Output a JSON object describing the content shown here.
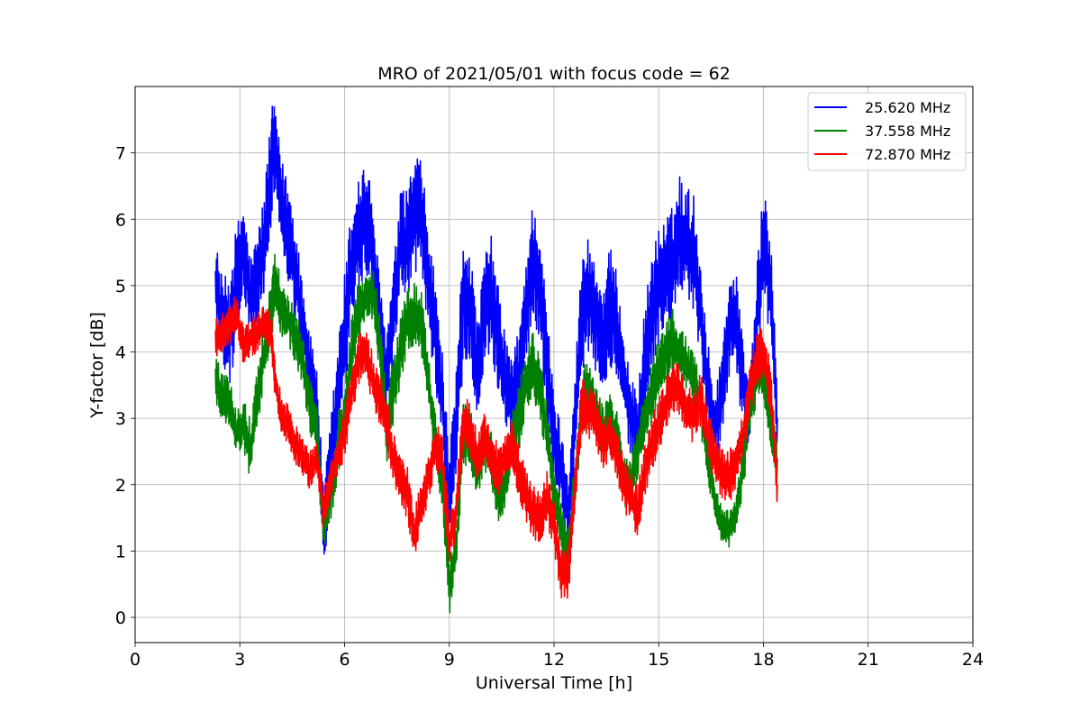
{
  "chart_data": {
    "type": "line",
    "title": "MRO of 2021/05/01 with focus code = 62",
    "xlabel": "Universal Time [h]",
    "ylabel": "Y-factor [dB]",
    "xlim": [
      0,
      24
    ],
    "ylim": [
      -0.38,
      8.0
    ],
    "xticks": [
      0,
      3,
      6,
      9,
      12,
      15,
      18,
      21,
      24
    ],
    "yticks": [
      0,
      1,
      2,
      3,
      4,
      5,
      6,
      7
    ],
    "grid": true,
    "legend_position": "top-right",
    "series": [
      {
        "name": "25.620 MHz",
        "color": "#0000ff",
        "x": [
          2.3,
          2.5,
          2.7,
          2.9,
          3.1,
          3.3,
          3.5,
          3.7,
          3.9,
          4.0,
          4.2,
          4.4,
          4.6,
          4.8,
          5.0,
          5.2,
          5.4,
          5.6,
          5.8,
          6.0,
          6.2,
          6.4,
          6.6,
          6.8,
          7.0,
          7.2,
          7.4,
          7.6,
          7.8,
          8.0,
          8.2,
          8.4,
          8.6,
          8.8,
          9.0,
          9.2,
          9.4,
          9.6,
          9.8,
          10.0,
          10.2,
          10.4,
          10.6,
          10.8,
          11.0,
          11.2,
          11.4,
          11.6,
          11.8,
          12.0,
          12.2,
          12.4,
          12.6,
          12.8,
          13.0,
          13.2,
          13.4,
          13.6,
          13.8,
          14.0,
          14.2,
          14.4,
          14.6,
          14.8,
          15.0,
          15.2,
          15.4,
          15.6,
          15.8,
          16.0,
          16.2,
          16.4,
          16.6,
          16.8,
          17.0,
          17.2,
          17.4,
          17.6,
          17.8,
          18.0,
          18.2,
          18.4
        ],
        "y": [
          5.0,
          4.5,
          4.3,
          5.0,
          5.6,
          4.8,
          5.1,
          5.6,
          6.8,
          7.1,
          6.2,
          5.7,
          5.2,
          4.4,
          3.8,
          3.3,
          1.3,
          2.2,
          3.2,
          4.2,
          5.3,
          5.8,
          6.0,
          5.6,
          4.4,
          3.6,
          4.5,
          5.6,
          5.6,
          6.1,
          6.0,
          5.1,
          4.3,
          3.3,
          1.7,
          2.8,
          4.9,
          4.7,
          3.7,
          4.6,
          4.9,
          4.2,
          3.6,
          3.2,
          3.6,
          4.6,
          5.4,
          5.0,
          3.8,
          2.7,
          2.3,
          1.6,
          2.9,
          4.6,
          4.9,
          4.5,
          4.2,
          4.7,
          4.4,
          3.6,
          3.0,
          2.8,
          3.9,
          4.6,
          5.0,
          5.1,
          5.3,
          5.8,
          5.6,
          5.5,
          4.6,
          3.5,
          2.8,
          3.3,
          4.4,
          4.5,
          3.6,
          3.0,
          4.4,
          5.6,
          5.0,
          3.0
        ],
        "amp": [
          0.7,
          0.6,
          0.9,
          0.9,
          0.7,
          0.6,
          0.7,
          0.8,
          0.9,
          0.6,
          0.7,
          0.9,
          0.8,
          0.7,
          0.5,
          0.5,
          0.6,
          0.8,
          0.9,
          1.0,
          0.9,
          0.9,
          0.9,
          0.8,
          0.7,
          0.7,
          0.8,
          0.8,
          0.9,
          0.9,
          0.9,
          0.8,
          0.8,
          0.7,
          0.7,
          0.9,
          1.0,
          0.9,
          0.8,
          0.8,
          0.9,
          0.8,
          0.7,
          0.7,
          0.8,
          0.9,
          0.9,
          0.9,
          0.8,
          0.7,
          0.6,
          0.6,
          0.8,
          0.9,
          0.9,
          0.8,
          0.8,
          0.9,
          0.8,
          0.7,
          0.6,
          0.6,
          0.8,
          0.9,
          0.9,
          0.9,
          0.9,
          0.9,
          0.9,
          0.9,
          0.8,
          0.7,
          0.6,
          0.7,
          0.8,
          0.8,
          0.7,
          0.6,
          0.8,
          0.9,
          0.8,
          0.6
        ]
      },
      {
        "name": "37.558 MHz",
        "color": "#008000",
        "x": [
          2.3,
          2.5,
          2.7,
          2.9,
          3.1,
          3.3,
          3.5,
          3.7,
          3.9,
          4.0,
          4.2,
          4.4,
          4.6,
          4.8,
          5.0,
          5.2,
          5.4,
          5.6,
          5.8,
          6.0,
          6.2,
          6.4,
          6.6,
          6.8,
          7.0,
          7.2,
          7.4,
          7.6,
          7.8,
          8.0,
          8.2,
          8.4,
          8.6,
          8.8,
          9.0,
          9.2,
          9.4,
          9.6,
          9.8,
          10.0,
          10.2,
          10.4,
          10.6,
          10.8,
          11.0,
          11.2,
          11.4,
          11.6,
          11.8,
          12.0,
          12.2,
          12.4,
          12.6,
          12.8,
          13.0,
          13.2,
          13.4,
          13.6,
          13.8,
          14.0,
          14.2,
          14.4,
          14.6,
          14.8,
          15.0,
          15.2,
          15.4,
          15.6,
          15.8,
          16.0,
          16.2,
          16.4,
          16.6,
          16.8,
          17.0,
          17.2,
          17.4,
          17.6,
          17.8,
          18.0,
          18.2,
          18.4
        ],
        "y": [
          3.6,
          3.3,
          3.2,
          2.8,
          2.9,
          2.5,
          3.3,
          4.0,
          4.6,
          5.1,
          4.6,
          4.5,
          4.2,
          3.9,
          3.2,
          2.8,
          1.4,
          1.8,
          2.6,
          3.0,
          4.0,
          4.6,
          4.8,
          4.9,
          4.2,
          2.8,
          3.4,
          4.0,
          4.5,
          4.6,
          4.4,
          3.6,
          2.7,
          2.0,
          0.4,
          1.1,
          2.8,
          2.7,
          2.1,
          2.6,
          2.4,
          1.8,
          2.0,
          2.8,
          3.0,
          3.6,
          3.8,
          3.4,
          2.8,
          1.9,
          1.4,
          1.0,
          2.0,
          3.2,
          3.5,
          3.1,
          2.8,
          3.0,
          2.7,
          2.0,
          2.1,
          2.5,
          3.0,
          3.4,
          3.8,
          4.0,
          4.2,
          4.0,
          3.8,
          3.6,
          3.2,
          2.4,
          1.8,
          1.4,
          1.3,
          1.5,
          2.2,
          3.1,
          3.6,
          3.7,
          3.0,
          2.4
        ],
        "amp": [
          0.4,
          0.4,
          0.4,
          0.4,
          0.4,
          0.5,
          0.5,
          0.5,
          0.5,
          0.5,
          0.4,
          0.4,
          0.4,
          0.4,
          0.4,
          0.5,
          0.4,
          0.4,
          0.5,
          0.5,
          0.5,
          0.5,
          0.4,
          0.4,
          0.5,
          0.5,
          0.5,
          0.5,
          0.5,
          0.5,
          0.5,
          0.4,
          0.4,
          0.4,
          0.4,
          0.4,
          0.5,
          0.5,
          0.4,
          0.4,
          0.4,
          0.4,
          0.4,
          0.4,
          0.5,
          0.5,
          0.5,
          0.5,
          0.4,
          0.4,
          0.4,
          0.4,
          0.4,
          0.5,
          0.5,
          0.4,
          0.4,
          0.4,
          0.4,
          0.4,
          0.4,
          0.4,
          0.4,
          0.5,
          0.5,
          0.5,
          0.5,
          0.4,
          0.4,
          0.4,
          0.4,
          0.4,
          0.3,
          0.3,
          0.3,
          0.3,
          0.4,
          0.4,
          0.4,
          0.4,
          0.4,
          0.4
        ]
      },
      {
        "name": "72.870 MHz",
        "color": "#ff0000",
        "x": [
          2.3,
          2.5,
          2.7,
          2.9,
          3.1,
          3.3,
          3.5,
          3.7,
          3.9,
          4.0,
          4.2,
          4.4,
          4.6,
          4.8,
          5.0,
          5.2,
          5.4,
          5.6,
          5.8,
          6.0,
          6.2,
          6.4,
          6.6,
          6.8,
          7.0,
          7.2,
          7.4,
          7.6,
          7.8,
          8.0,
          8.2,
          8.4,
          8.6,
          8.8,
          9.0,
          9.2,
          9.4,
          9.6,
          9.8,
          10.0,
          10.2,
          10.4,
          10.6,
          10.8,
          11.0,
          11.2,
          11.4,
          11.6,
          11.8,
          12.0,
          12.2,
          12.4,
          12.6,
          12.8,
          13.0,
          13.2,
          13.4,
          13.6,
          13.8,
          14.0,
          14.2,
          14.4,
          14.6,
          14.8,
          15.0,
          15.2,
          15.4,
          15.6,
          15.8,
          16.0,
          16.2,
          16.4,
          16.6,
          16.8,
          17.0,
          17.2,
          17.4,
          17.6,
          17.8,
          18.0,
          18.2,
          18.4
        ],
        "y": [
          4.2,
          4.3,
          4.4,
          4.6,
          4.1,
          4.2,
          4.3,
          4.4,
          4.3,
          3.6,
          3.0,
          2.9,
          2.6,
          2.4,
          2.2,
          2.4,
          1.6,
          2.1,
          2.4,
          2.8,
          3.4,
          3.9,
          4.0,
          3.6,
          3.3,
          3.0,
          2.4,
          2.0,
          1.9,
          1.2,
          1.7,
          2.1,
          2.6,
          2.4,
          1.1,
          1.6,
          3.0,
          2.8,
          2.4,
          2.7,
          2.5,
          2.2,
          2.4,
          2.6,
          2.2,
          1.8,
          1.6,
          1.5,
          1.8,
          1.4,
          0.7,
          0.6,
          2.0,
          3.2,
          3.1,
          3.0,
          2.6,
          2.8,
          2.5,
          2.0,
          1.8,
          1.6,
          2.2,
          2.6,
          2.9,
          3.2,
          3.5,
          3.4,
          3.1,
          3.0,
          3.3,
          2.8,
          2.4,
          2.2,
          2.1,
          2.3,
          2.7,
          3.4,
          3.9,
          4.0,
          3.4,
          2.0
        ],
        "amp": [
          0.3,
          0.3,
          0.3,
          0.3,
          0.3,
          0.3,
          0.3,
          0.3,
          0.3,
          0.3,
          0.3,
          0.3,
          0.3,
          0.3,
          0.3,
          0.3,
          0.3,
          0.3,
          0.3,
          0.4,
          0.4,
          0.4,
          0.4,
          0.4,
          0.4,
          0.4,
          0.4,
          0.4,
          0.4,
          0.4,
          0.4,
          0.4,
          0.4,
          0.4,
          0.4,
          0.4,
          0.4,
          0.4,
          0.4,
          0.4,
          0.4,
          0.4,
          0.4,
          0.4,
          0.4,
          0.4,
          0.4,
          0.4,
          0.4,
          0.4,
          0.4,
          0.4,
          0.4,
          0.4,
          0.4,
          0.4,
          0.4,
          0.4,
          0.4,
          0.4,
          0.4,
          0.4,
          0.4,
          0.4,
          0.4,
          0.4,
          0.4,
          0.4,
          0.4,
          0.4,
          0.4,
          0.4,
          0.4,
          0.4,
          0.4,
          0.4,
          0.4,
          0.4,
          0.4,
          0.4,
          0.4,
          0.4
        ]
      }
    ]
  }
}
